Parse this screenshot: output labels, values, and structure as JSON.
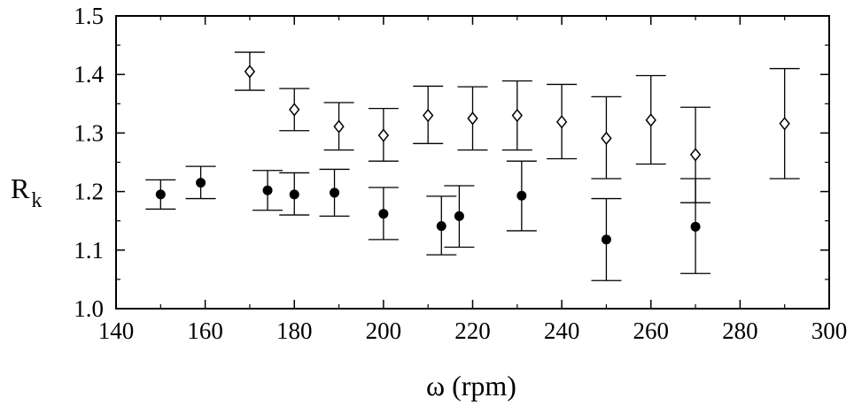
{
  "chart_data": {
    "type": "scatter",
    "title": "",
    "xlabel": "ω (rpm)",
    "ylabel": "R",
    "ylabel_subscript": "k",
    "xlim": [
      140,
      300
    ],
    "ylim": [
      1.0,
      1.5
    ],
    "xticks": [
      140,
      160,
      180,
      200,
      220,
      240,
      260,
      280,
      300
    ],
    "xtick_labels": [
      "140",
      "160",
      "180",
      "200",
      "220",
      "240",
      "260",
      "280",
      "300"
    ],
    "yticks": [
      1.0,
      1.1,
      1.2,
      1.3,
      1.4,
      1.5
    ],
    "ytick_labels": [
      "1.0",
      "1.1",
      "1.2",
      "1.3",
      "1.4",
      "1.5"
    ],
    "grid": false,
    "legend": "none",
    "colors": {
      "axis": "#000000",
      "marker": "#000000",
      "background": "#ffffff"
    },
    "series": [
      {
        "marker": "filled-circle",
        "points": [
          {
            "x": 150,
            "y": 1.195,
            "err_low": 1.17,
            "err_high": 1.22
          },
          {
            "x": 159,
            "y": 1.215,
            "err_low": 1.188,
            "err_high": 1.243
          },
          {
            "x": 174,
            "y": 1.202,
            "err_low": 1.168,
            "err_high": 1.236
          },
          {
            "x": 180,
            "y": 1.195,
            "err_low": 1.16,
            "err_high": 1.232
          },
          {
            "x": 189,
            "y": 1.198,
            "err_low": 1.158,
            "err_high": 1.238
          },
          {
            "x": 200,
            "y": 1.162,
            "err_low": 1.118,
            "err_high": 1.207
          },
          {
            "x": 213,
            "y": 1.141,
            "err_low": 1.092,
            "err_high": 1.192
          },
          {
            "x": 217,
            "y": 1.158,
            "err_low": 1.105,
            "err_high": 1.21
          },
          {
            "x": 231,
            "y": 1.193,
            "err_low": 1.133,
            "err_high": 1.252
          },
          {
            "x": 250,
            "y": 1.118,
            "err_low": 1.048,
            "err_high": 1.188
          },
          {
            "x": 270,
            "y": 1.14,
            "err_low": 1.06,
            "err_high": 1.222
          }
        ]
      },
      {
        "marker": "open-diamond",
        "points": [
          {
            "x": 170,
            "y": 1.405,
            "err_low": 1.373,
            "err_high": 1.438
          },
          {
            "x": 180,
            "y": 1.34,
            "err_low": 1.304,
            "err_high": 1.376
          },
          {
            "x": 190,
            "y": 1.311,
            "err_low": 1.271,
            "err_high": 1.352
          },
          {
            "x": 200,
            "y": 1.296,
            "err_low": 1.252,
            "err_high": 1.342
          },
          {
            "x": 210,
            "y": 1.33,
            "err_low": 1.282,
            "err_high": 1.38
          },
          {
            "x": 220,
            "y": 1.325,
            "err_low": 1.271,
            "err_high": 1.379
          },
          {
            "x": 230,
            "y": 1.33,
            "err_low": 1.271,
            "err_high": 1.389
          },
          {
            "x": 240,
            "y": 1.319,
            "err_low": 1.256,
            "err_high": 1.383
          },
          {
            "x": 250,
            "y": 1.291,
            "err_low": 1.222,
            "err_high": 1.362
          },
          {
            "x": 260,
            "y": 1.322,
            "err_low": 1.247,
            "err_high": 1.398
          },
          {
            "x": 270,
            "y": 1.263,
            "err_low": 1.181,
            "err_high": 1.344
          },
          {
            "x": 290,
            "y": 1.316,
            "err_low": 1.222,
            "err_high": 1.41
          }
        ]
      }
    ]
  }
}
